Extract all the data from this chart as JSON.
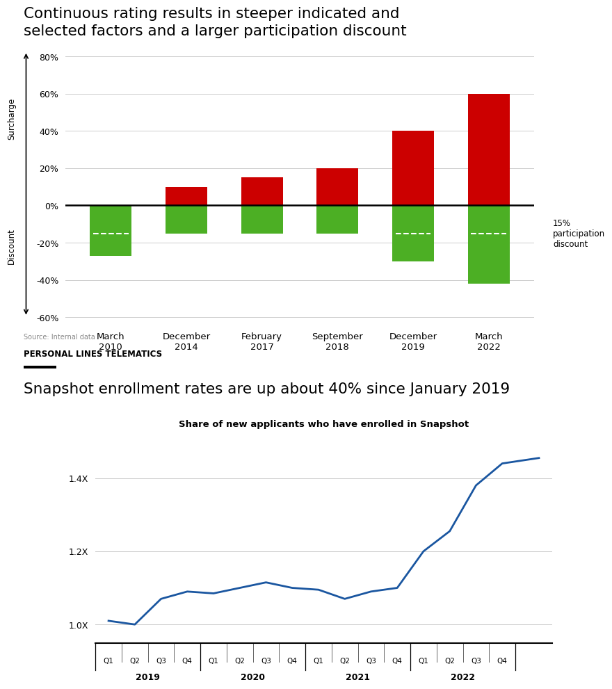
{
  "title1_line1": "Continuous rating results in steeper indicated and",
  "title1_line2": "selected factors and a larger participation discount",
  "bar_categories": [
    "March\n2010",
    "December\n2014",
    "February\n2017",
    "September\n2018",
    "December\n2019",
    "March\n2022"
  ],
  "red_values": [
    0,
    10,
    15,
    20,
    40,
    60
  ],
  "green_values": [
    -27,
    -15,
    -15,
    -15,
    -30,
    -42
  ],
  "dashed_line_y": -15,
  "bar_red_color": "#cc0000",
  "bar_green_color": "#4caf24",
  "ylim": [
    -65,
    90
  ],
  "yticks": [
    -60,
    -40,
    -20,
    0,
    20,
    40,
    60,
    80
  ],
  "ylabel_top": "Surcharge",
  "ylabel_bottom": "Discount",
  "annotation_text": "15%\nparticipation\ndiscount",
  "source_text": "Source: Internal data",
  "section_label": "PERSONAL LINES TELEMATICS",
  "title2": "Snapshot enrollment rates are up about 40% since January 2019",
  "chart2_title": "Share of new applicants who have enrolled in Snapshot",
  "line_color": "#1a56a0",
  "line_y": [
    1.01,
    1.0,
    1.07,
    1.09,
    1.085,
    1.1,
    1.115,
    1.1,
    1.095,
    1.07,
    1.09,
    1.1,
    1.2,
    1.255,
    1.38,
    1.44
  ],
  "x_groups": [
    "2019",
    "2020",
    "2021",
    "2022"
  ],
  "yticks2": [
    1.0,
    1.2,
    1.4
  ],
  "ylim2": [
    0.95,
    1.52
  ],
  "background_color": "#ffffff"
}
